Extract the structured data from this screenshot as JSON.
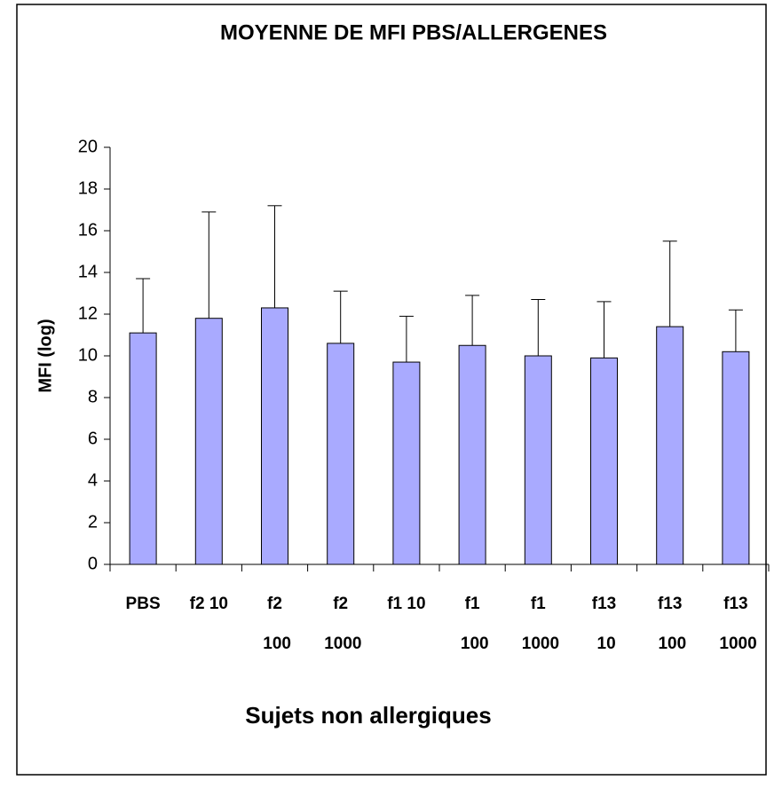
{
  "chart_data": {
    "type": "bar",
    "title": "MOYENNE DE MFI PBS/ALLERGENES",
    "x_label": "Sujets non allergiques",
    "y_label": "MFI (log)",
    "categories": [
      "PBS",
      "f2 10",
      "f2 100",
      "f2 1000",
      "f1 10",
      "f1 100",
      "f1 1000",
      "f13 10",
      "f13 100",
      "f13 1000"
    ],
    "values": [
      11.1,
      11.8,
      12.3,
      10.6,
      9.7,
      10.5,
      10.0,
      9.9,
      11.4,
      10.2
    ],
    "errors": [
      2.6,
      5.1,
      4.9,
      2.5,
      2.2,
      2.4,
      2.7,
      2.7,
      4.1,
      2.0
    ],
    "color": "#a9aaff",
    "ylim": [
      0,
      20
    ],
    "yticks": [
      0,
      2,
      4,
      6,
      8,
      10,
      12,
      14,
      16,
      18,
      20
    ],
    "grid": false
  }
}
